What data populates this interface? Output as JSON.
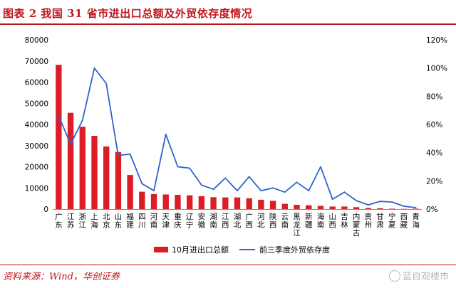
{
  "figure": {
    "title": "图表 2   我国 31 省市进出口总额及外贸依存度情况",
    "source": "资料来源：Wind，华创证券",
    "watermark": "蓝自观楼市"
  },
  "colors": {
    "bar": "#dd1c26",
    "line": "#2e64c8",
    "accent": "#c0161c"
  },
  "chart_data": {
    "type": "bar",
    "categories": [
      "广东",
      "江苏",
      "浙江",
      "上海",
      "北京",
      "山东",
      "福建",
      "四川",
      "河南",
      "天津",
      "重庆",
      "辽宁",
      "安徽",
      "湖南",
      "江西",
      "湖北",
      "广西",
      "河北",
      "陕西",
      "云南",
      "黑龙江",
      "新疆",
      "海南",
      "山西",
      "吉林",
      "内蒙古",
      "贵州",
      "甘肃",
      "宁夏",
      "西藏",
      "青海"
    ],
    "series": [
      {
        "name": "10月进出口总额",
        "type": "bar",
        "axis": "left",
        "values": [
          68200,
          45500,
          38900,
          34600,
          29600,
          27000,
          16100,
          8200,
          7100,
          6900,
          6700,
          6500,
          6100,
          5600,
          5500,
          5500,
          5100,
          4400,
          3900,
          2500,
          2000,
          1800,
          1500,
          1200,
          1200,
          900,
          500,
          400,
          200,
          100,
          200
        ]
      },
      {
        "name": "前三季度外贸依存度",
        "type": "line",
        "axis": "right",
        "values": [
          66,
          46,
          63,
          100,
          89,
          38,
          39,
          18,
          13,
          53,
          30,
          29,
          17,
          14,
          22,
          13,
          23,
          13,
          15,
          12,
          19,
          13,
          30,
          7,
          12,
          6,
          3,
          5.5,
          5,
          2,
          1
        ]
      }
    ],
    "y_left": {
      "min": 0,
      "max": 80000,
      "ticks": [
        "0",
        "10000",
        "20000",
        "30000",
        "40000",
        "50000",
        "60000",
        "70000",
        "80000"
      ]
    },
    "y_right": {
      "min": 0,
      "max": 120,
      "ticks": [
        "0%",
        "20%",
        "40%",
        "60%",
        "80%",
        "100%",
        "120%"
      ]
    },
    "legend_position": "bottom",
    "grid": false
  }
}
